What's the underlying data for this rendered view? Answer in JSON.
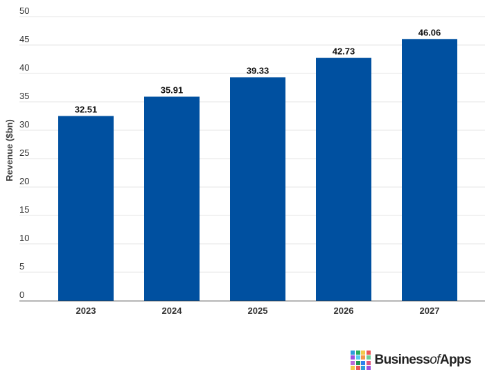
{
  "chart_data": {
    "type": "bar",
    "categories": [
      "2023",
      "2024",
      "2025",
      "2026",
      "2027"
    ],
    "values": [
      32.51,
      35.91,
      39.33,
      42.73,
      46.06
    ],
    "value_labels": [
      "32.51",
      "35.91",
      "39.33",
      "42.73",
      "46.06"
    ],
    "title": "",
    "xlabel": "",
    "ylabel": "Revenue ($bn)",
    "ylim": [
      0,
      50
    ],
    "yticks": [
      0,
      5,
      10,
      15,
      20,
      25,
      30,
      35,
      40,
      45,
      50
    ],
    "grid": true,
    "bar_color": "#0050a0",
    "grid_color": "#e6e6e6"
  },
  "branding": {
    "logo_part1": "Business",
    "logo_part2": "of",
    "logo_part3": "Apps",
    "logo_colors": [
      "#2d9cdb",
      "#27ae60",
      "#f2c94c",
      "#eb5757",
      "#9b51e0",
      "#56ccf2",
      "#f2994a",
      "#6fcf97",
      "#bb6bd9",
      "#219653",
      "#2f80ed",
      "#e0567f",
      "#f2c94c",
      "#eb5757",
      "#2d9cdb",
      "#9b51e0"
    ]
  }
}
